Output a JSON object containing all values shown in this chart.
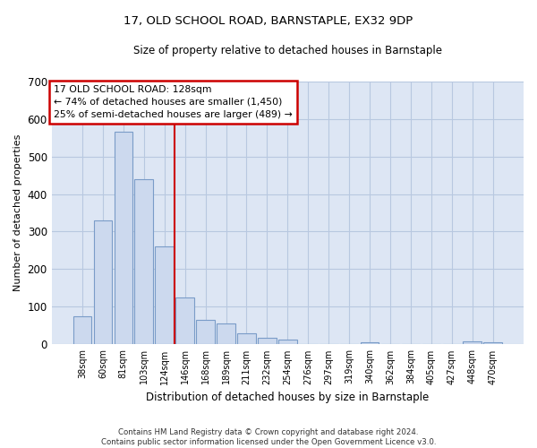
{
  "title": "17, OLD SCHOOL ROAD, BARNSTAPLE, EX32 9DP",
  "subtitle": "Size of property relative to detached houses in Barnstaple",
  "xlabel": "Distribution of detached houses by size in Barnstaple",
  "ylabel": "Number of detached properties",
  "categories": [
    "38sqm",
    "60sqm",
    "81sqm",
    "103sqm",
    "124sqm",
    "146sqm",
    "168sqm",
    "189sqm",
    "211sqm",
    "232sqm",
    "254sqm",
    "276sqm",
    "297sqm",
    "319sqm",
    "340sqm",
    "362sqm",
    "384sqm",
    "405sqm",
    "427sqm",
    "448sqm",
    "470sqm"
  ],
  "values": [
    75,
    330,
    565,
    440,
    260,
    125,
    65,
    55,
    30,
    18,
    12,
    0,
    0,
    0,
    5,
    0,
    0,
    0,
    0,
    7,
    5
  ],
  "bar_color": "#ccd9ee",
  "bar_edge_color": "#7a9cc8",
  "highlight_color": "#cc0000",
  "annotation_text": "17 OLD SCHOOL ROAD: 128sqm\n← 74% of detached houses are smaller (1,450)\n25% of semi-detached houses are larger (489) →",
  "annotation_box_color": "#cc0000",
  "ylim": [
    0,
    700
  ],
  "yticks": [
    0,
    100,
    200,
    300,
    400,
    500,
    600,
    700
  ],
  "grid_color": "#b8c8e0",
  "bg_color": "#dde6f4",
  "footer": "Contains HM Land Registry data © Crown copyright and database right 2024.\nContains public sector information licensed under the Open Government Licence v3.0."
}
